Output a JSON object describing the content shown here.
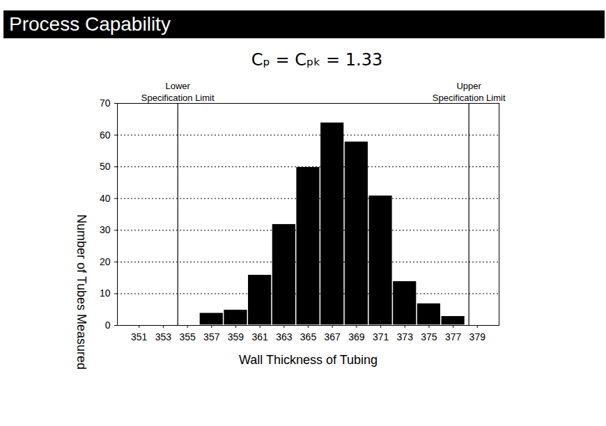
{
  "chart_data": {
    "type": "histogram",
    "title": "Process Capability",
    "subtitle": "Cₚ = Cₚₖ = 1.33",
    "bins": [
      350,
      352,
      354,
      356,
      358,
      360,
      362,
      364,
      366,
      368,
      370,
      372,
      374,
      376,
      378,
      380
    ],
    "values": [
      0,
      0,
      0,
      4,
      5,
      16,
      32,
      50,
      64,
      58,
      41,
      14,
      7,
      3,
      0
    ],
    "color": "#000000",
    "x_label": "Wall Thickness of Tubing",
    "y_label": "Number of Tubes Measured",
    "xlim": [
      349.2,
      380.8
    ],
    "xticks": [
      351,
      353,
      355,
      357,
      359,
      361,
      363,
      365,
      367,
      369,
      371,
      373,
      375,
      377,
      379
    ],
    "ylim": [
      0,
      70
    ],
    "yticks": [
      0,
      10,
      20,
      30,
      40,
      50,
      60,
      70
    ],
    "grid": true,
    "line_style": "dotted",
    "annotations": [
      {
        "text": "Lower\nSpecification Limit",
        "x": 354.2
      },
      {
        "text": "Upper\nSpecification Limit",
        "x": 378.3
      }
    ]
  }
}
